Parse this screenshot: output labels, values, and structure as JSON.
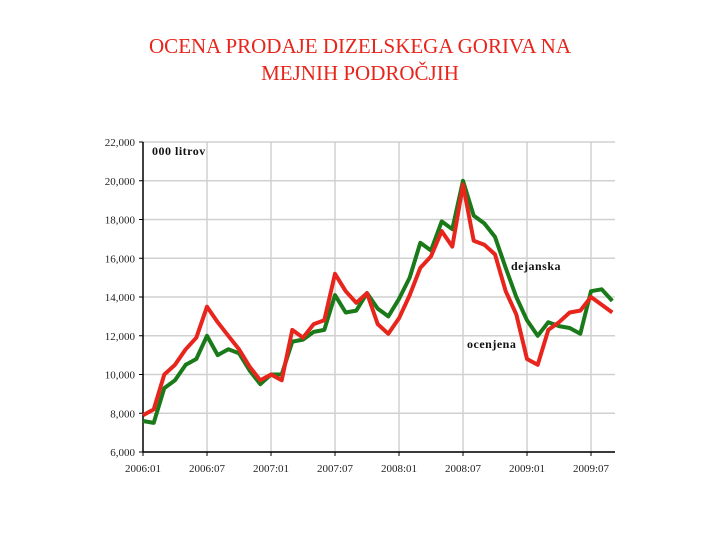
{
  "title_line1": "OCENA PRODAJE DIZELSKEGA GORIVA NA",
  "title_line2": "MEJNIH PODROČJIH",
  "chart_data": {
    "type": "line",
    "ylabel": "000 litrov",
    "ylim": [
      6000,
      22000
    ],
    "yticks": [
      6000,
      8000,
      10000,
      12000,
      14000,
      16000,
      18000,
      20000,
      22000
    ],
    "ytick_labels": [
      "6,000",
      "8,000",
      "10,000",
      "12,000",
      "14,000",
      "16,000",
      "18,000",
      "20,000",
      "22,000"
    ],
    "xtick_labels": [
      "2006:01",
      "2006:07",
      "2007:01",
      "2007:07",
      "2008:01",
      "2008:07",
      "2009:01",
      "2009:07"
    ],
    "x_start": "2006:01",
    "x_step": "1 month",
    "grid": true,
    "series": [
      {
        "name": "dejanska",
        "color": "#1a7a1a",
        "values": [
          7600,
          7500,
          9300,
          9700,
          10500,
          10800,
          12000,
          11000,
          11300,
          11100,
          10200,
          9500,
          10000,
          10000,
          11700,
          11800,
          12200,
          12300,
          14100,
          13200,
          13300,
          14200,
          13400,
          13000,
          13900,
          15000,
          16800,
          16400,
          17900,
          17500,
          20000,
          18200,
          17800,
          17100,
          15500,
          14000,
          12800,
          12000,
          12700,
          12500,
          12400,
          12100,
          14300,
          14400,
          13800
        ]
      },
      {
        "name": "ocenjena",
        "color": "#e8251c",
        "values": [
          7900,
          8200,
          10000,
          10500,
          11300,
          11900,
          13500,
          12700,
          12000,
          11300,
          10400,
          9700,
          10000,
          9700,
          12300,
          11900,
          12600,
          12800,
          15200,
          14300,
          13700,
          14200,
          12600,
          12100,
          12900,
          14100,
          15500,
          16100,
          17400,
          16600,
          19800,
          16900,
          16700,
          16200,
          14300,
          13100,
          10800,
          10500,
          12300,
          12700,
          13200,
          13300,
          14000,
          13600,
          13200
        ]
      }
    ]
  }
}
